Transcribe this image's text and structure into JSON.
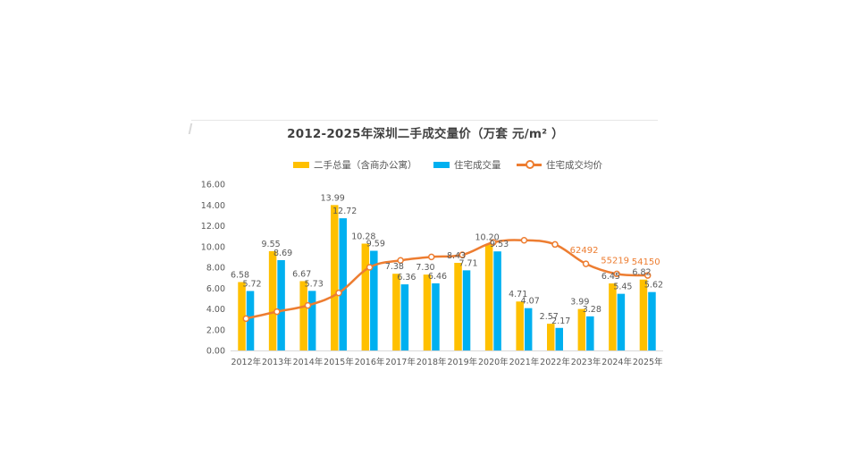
{
  "chart_data": {
    "type": "bar",
    "title": "2012-2025年深圳二手成交量价（万套  元/m² ）",
    "categories": [
      "2012年",
      "2013年",
      "2014年",
      "2015年",
      "2016年",
      "2017年",
      "2018年",
      "2019年",
      "2020年",
      "2021年",
      "2022年",
      "2023年",
      "2024年",
      "2025年"
    ],
    "ylim": [
      0,
      16
    ],
    "yticks": [
      "0.00",
      "2.00",
      "4.00",
      "6.00",
      "8.00",
      "10.00",
      "12.00",
      "14.00",
      "16.00"
    ],
    "grid": false,
    "legend_position": "top",
    "series": [
      {
        "name": "二手总量（含商办公寓）",
        "type": "bar",
        "color": "#ffc000",
        "values": [
          6.58,
          9.55,
          6.67,
          13.99,
          10.28,
          7.38,
          7.3,
          8.43,
          10.2,
          4.71,
          2.57,
          3.99,
          6.45,
          6.82
        ],
        "labels": [
          "6.58",
          "9.55",
          "6.67",
          "13.99",
          "10.28",
          "7.38",
          "7.30",
          "8.43",
          "10.20",
          "4.71",
          "2.57",
          "3.99",
          "6.45",
          "6.82"
        ]
      },
      {
        "name": "住宅成交量",
        "type": "bar",
        "color": "#00b0f0",
        "values": [
          5.72,
          8.69,
          5.73,
          12.72,
          9.59,
          6.36,
          6.46,
          7.71,
          9.53,
          4.07,
          2.17,
          3.28,
          5.45,
          5.62
        ],
        "labels": [
          "5.72",
          "8.69",
          "5.73",
          "12.72",
          "9.59",
          "6.36",
          "6.46",
          "7.71",
          "9.53",
          "4.07",
          "2.17",
          "3.28",
          "5.45",
          "5.62"
        ]
      },
      {
        "name": "住宅成交均价",
        "type": "line",
        "color": "#ed7d31",
        "values": [
          23000,
          28000,
          32500,
          41500,
          60000,
          65000,
          67500,
          69000,
          78000,
          79500,
          76500,
          62492,
          55219,
          54150
        ],
        "labels": [
          "",
          "",
          "",
          "",
          "",
          "",
          "",
          "",
          "",
          "",
          "",
          "62492",
          "55219",
          "54150"
        ]
      }
    ]
  }
}
